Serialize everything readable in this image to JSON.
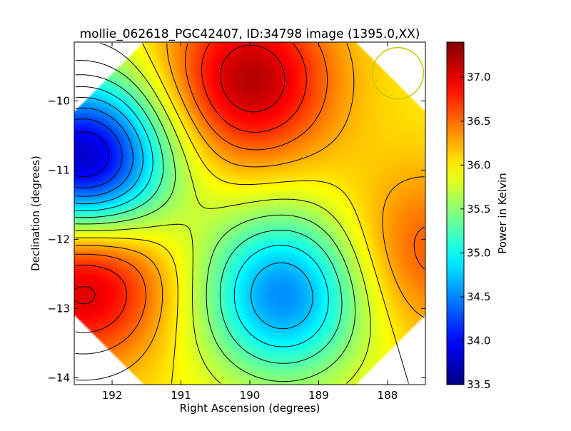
{
  "chart_data": {
    "type": "heatmap",
    "title": "mollie_062618_PGC42407, ID:34798 image (1395.0,XX)",
    "xlabel": "Right Ascension (degrees)",
    "ylabel": "Declination (degrees)",
    "xlim": [
      192.55,
      187.45
    ],
    "ylim": [
      -14.1,
      -9.15
    ],
    "x_inverted": true,
    "xticks": [
      192,
      191,
      190,
      189,
      188
    ],
    "yticks": [
      -10,
      -11,
      -12,
      -13,
      -14
    ],
    "xtick_labels": [
      "192",
      "191",
      "190",
      "189",
      "188"
    ],
    "ytick_labels": [
      "−10",
      "−11",
      "−12",
      "−13",
      "−14"
    ],
    "colorbar": {
      "label": "Power in Kelvin",
      "range": [
        33.5,
        37.4
      ],
      "colormap": "jet",
      "ticks": [
        33.5,
        34.0,
        34.5,
        35.0,
        35.5,
        36.0,
        36.5,
        37.0
      ],
      "tick_labels": [
        "33.5",
        "34.0",
        "34.5",
        "35.0",
        "35.5",
        "36.0",
        "36.5",
        "37.0"
      ]
    },
    "features": [
      {
        "kind": "max",
        "ra": 190.0,
        "dec": -9.7,
        "value": 37.2
      },
      {
        "kind": "min",
        "ra": 192.4,
        "dec": -10.9,
        "value": 33.6
      },
      {
        "kind": "max",
        "ra": 192.4,
        "dec": -12.5,
        "value": 37.3
      },
      {
        "kind": "min",
        "ra": 189.5,
        "dec": -12.8,
        "value": 34.5
      },
      {
        "kind": "max",
        "ra": 187.5,
        "dec": -12.2,
        "value": 36.6
      },
      {
        "kind": "saddle",
        "ra": 189.95,
        "dec": -11.6,
        "value": 36.0
      }
    ],
    "beam_circle": {
      "ra": 187.85,
      "dec": -9.6,
      "radius_deg": 0.37,
      "color": "#c8c800"
    },
    "contours": true,
    "grid": false
  }
}
